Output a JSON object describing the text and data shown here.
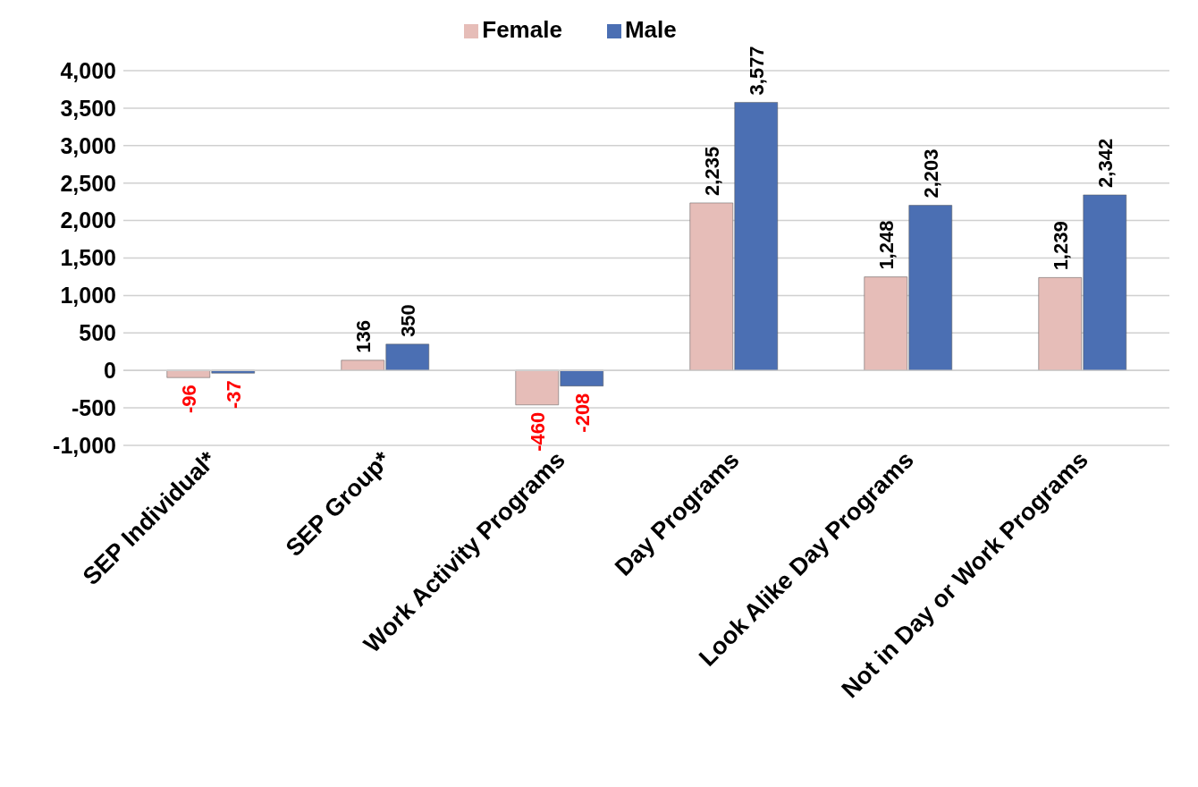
{
  "chart_data": {
    "type": "bar",
    "categories": [
      "SEP Individual*",
      "SEP Group*",
      "Work Activity Programs",
      "Day Programs",
      "Look Alike Day Programs",
      "Not in Day or Work Programs"
    ],
    "series": [
      {
        "name": "Female",
        "color": "#e6bdb8",
        "values": [
          -96,
          136,
          -460,
          2235,
          1248,
          1239
        ],
        "value_labels": [
          "-96",
          "136",
          "-460",
          "2,235",
          "1,248",
          "1,239"
        ]
      },
      {
        "name": "Male",
        "color": "#4b6fb3",
        "values": [
          -37,
          350,
          -208,
          3577,
          2203,
          2342
        ],
        "value_labels": [
          "-37",
          "350",
          "-208",
          "3,577",
          "2,203",
          "2,342"
        ]
      }
    ],
    "ylim": [
      -1000,
      4000
    ],
    "yticks": [
      {
        "value": -1000,
        "label": "-1,000"
      },
      -500,
      0,
      500,
      {
        "value": 1000,
        "label": "1,000"
      },
      {
        "value": 1500,
        "label": "1,500"
      },
      {
        "value": 2000,
        "label": "2,000"
      },
      {
        "value": 2500,
        "label": "2,500"
      },
      {
        "value": 3000,
        "label": "3,000"
      },
      {
        "value": 3500,
        "label": "3,500"
      },
      {
        "value": 4000,
        "label": "4,000"
      }
    ],
    "grid": "y",
    "legend": "top"
  }
}
